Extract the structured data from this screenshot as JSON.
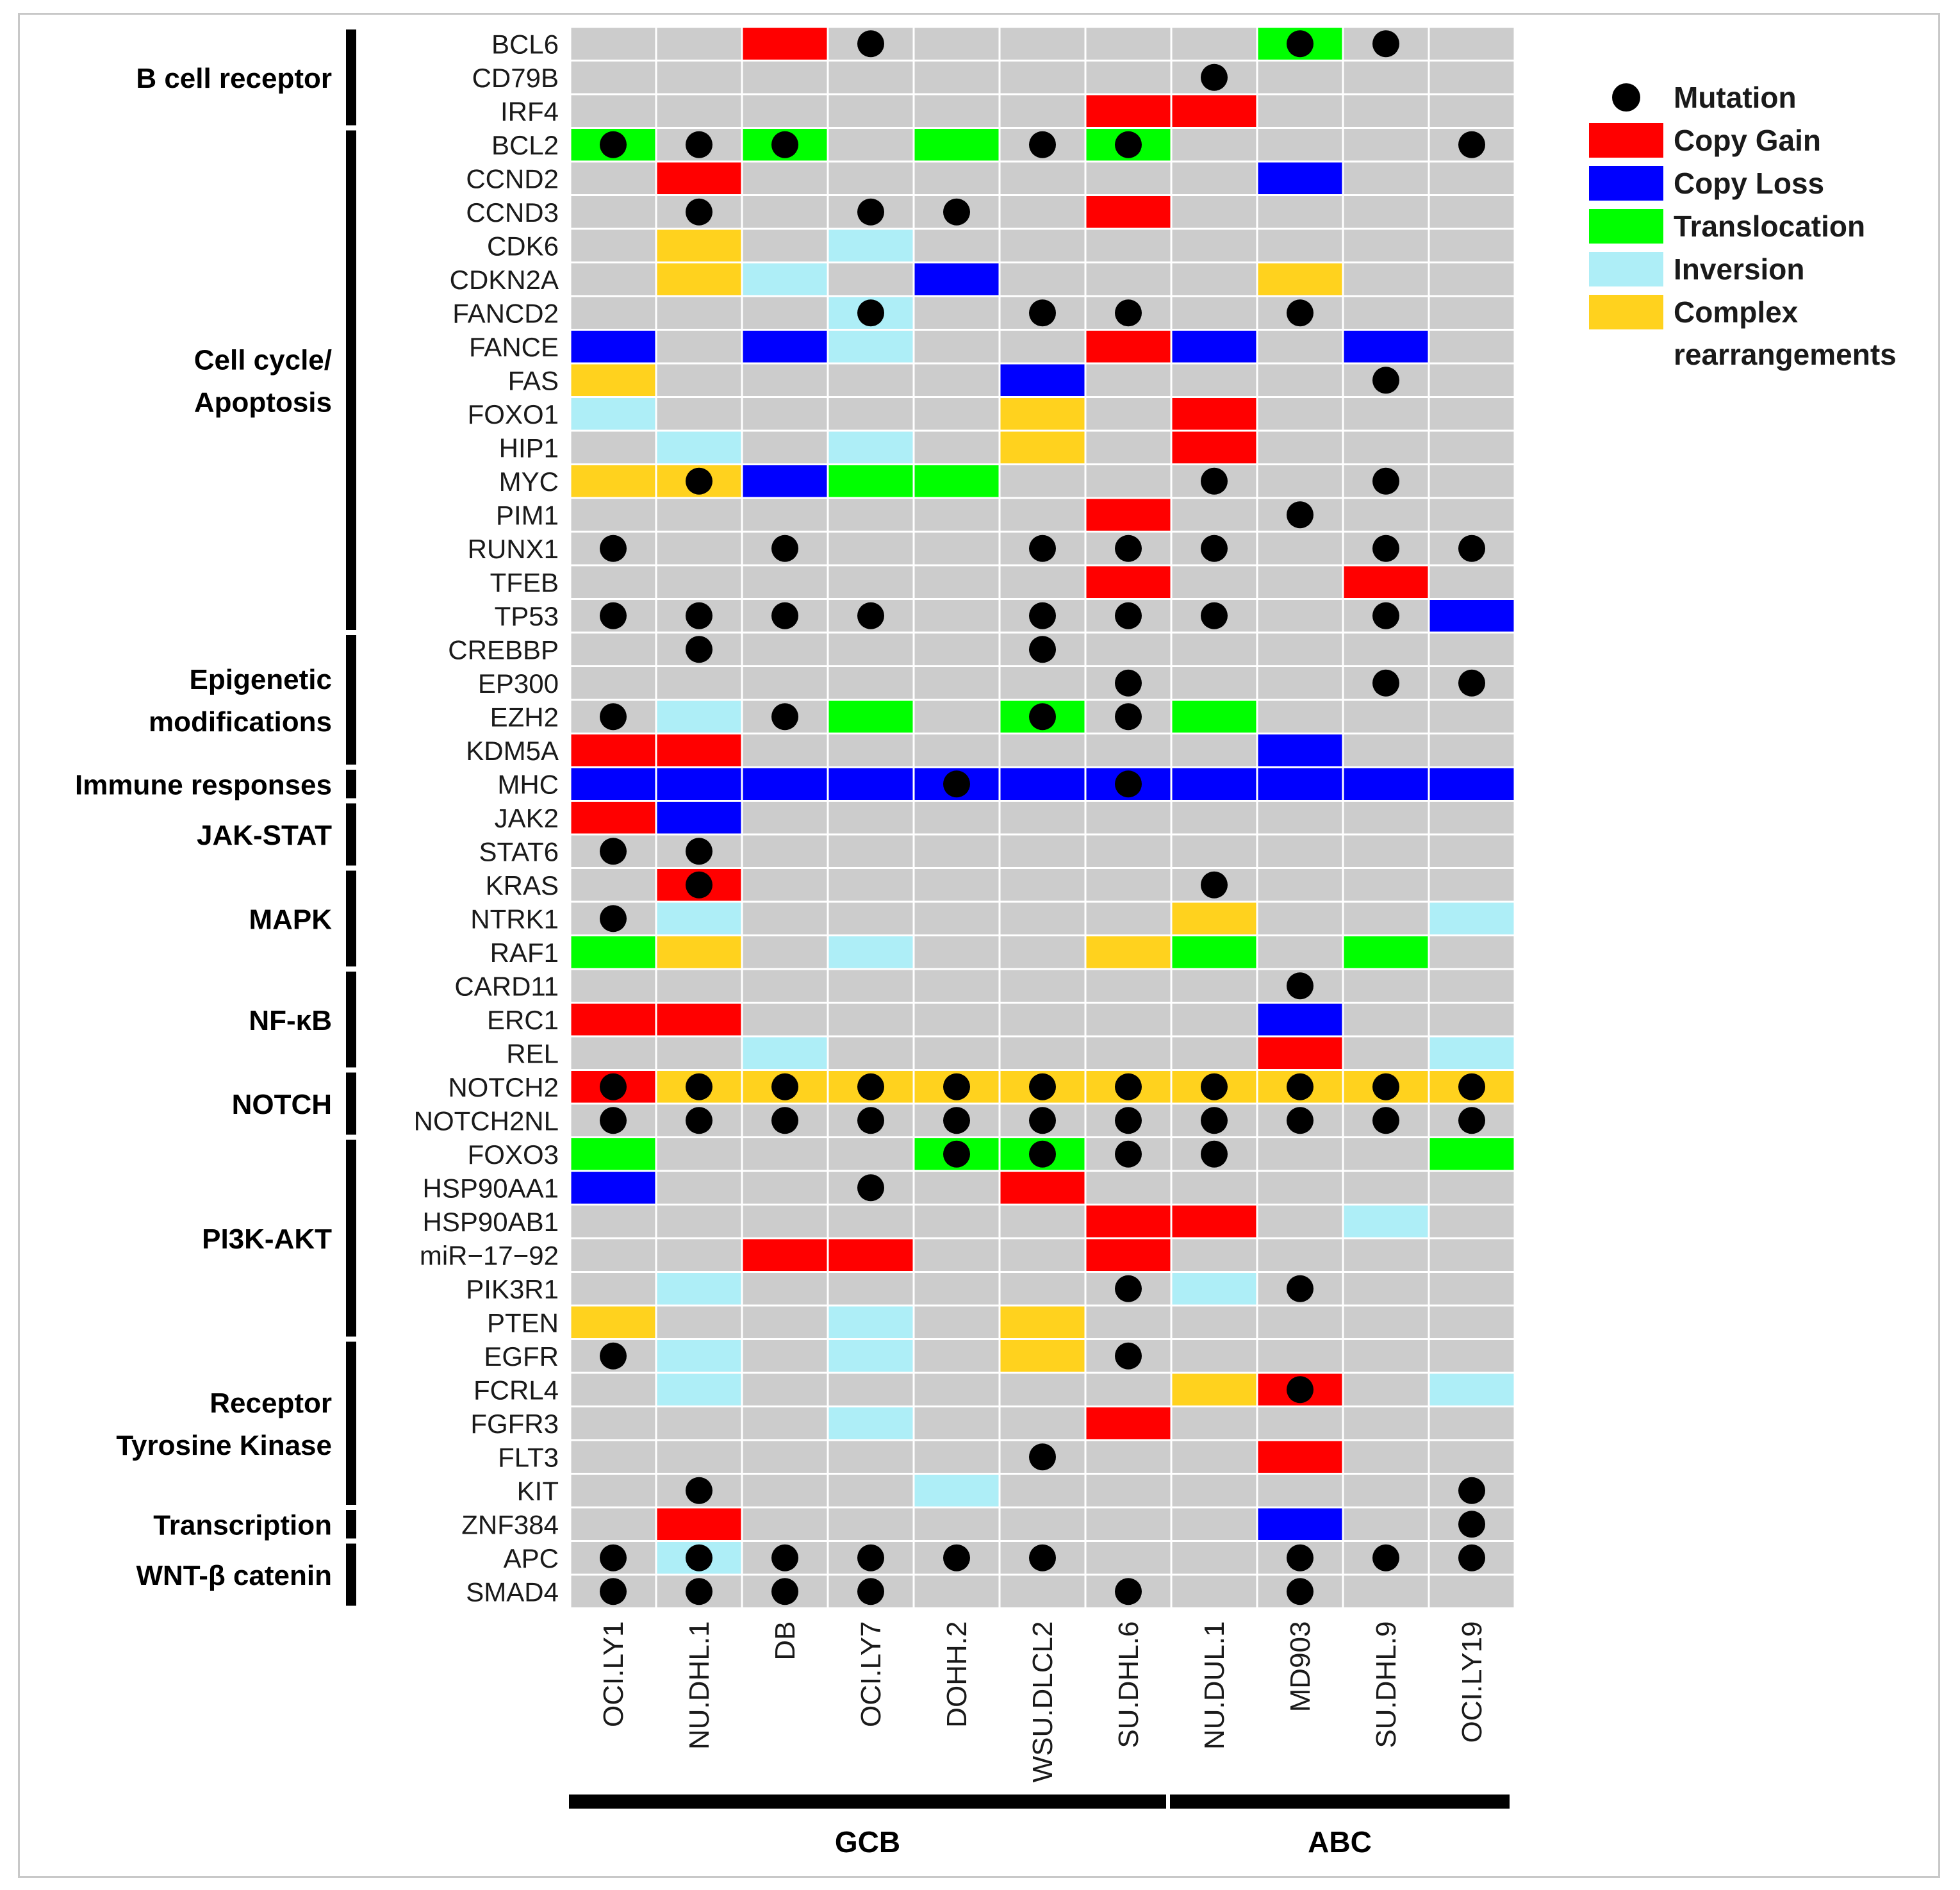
{
  "chart_data": {
    "type": "heatmap",
    "title": "",
    "xlabel": "",
    "ylabel": "",
    "cell_lines": [
      "OCI.LY1",
      "NU.DHL.1",
      "DB",
      "OCI.LY7",
      "DOHH.2",
      "WSU.DLCL2",
      "SU.DHL.6",
      "NU.DUL.1",
      "MD903",
      "SU.DHL.9",
      "OCI.LY19"
    ],
    "genes": [
      "BCL6",
      "CD79B",
      "IRF4",
      "BCL2",
      "CCND2",
      "CCND3",
      "CDK6",
      "CDKN2A",
      "FANCD2",
      "FANCE",
      "FAS",
      "FOXO1",
      "HIP1",
      "MYC",
      "PIM1",
      "RUNX1",
      "TFEB",
      "TP53",
      "CREBBP",
      "EP300",
      "EZH2",
      "KDM5A",
      "MHC",
      "JAK2",
      "STAT6",
      "KRAS",
      "NTRK1",
      "RAF1",
      "CARD11",
      "ERC1",
      "REL",
      "NOTCH2",
      "NOTCH2NL",
      "FOXO3",
      "HSP90AA1",
      "HSP90AB1",
      "miR−17−92",
      "PIK3R1",
      "PTEN",
      "EGFR",
      "FCRL4",
      "FGFR3",
      "FLT3",
      "KIT",
      "ZNF384",
      "APC",
      "SMAD4"
    ],
    "alteration_codes": {
      "0": "none",
      "G": "Copy Gain",
      "L": "Copy Loss",
      "T": "Translocation",
      "I": "Inversion",
      "C": "Complex rearrangements"
    },
    "matrix": [
      [
        "0",
        "0",
        "G",
        "0",
        "0",
        "0",
        "0",
        "0",
        "T",
        "0",
        "0"
      ],
      [
        "0",
        "0",
        "0",
        "0",
        "0",
        "0",
        "0",
        "0",
        "0",
        "0",
        "0"
      ],
      [
        "0",
        "0",
        "0",
        "0",
        "0",
        "0",
        "G",
        "G",
        "0",
        "0",
        "0"
      ],
      [
        "T",
        "0",
        "T",
        "0",
        "T",
        "0",
        "T",
        "0",
        "0",
        "0",
        "0"
      ],
      [
        "0",
        "G",
        "0",
        "0",
        "0",
        "0",
        "0",
        "0",
        "L",
        "0",
        "0"
      ],
      [
        "0",
        "0",
        "0",
        "0",
        "0",
        "0",
        "G",
        "0",
        "0",
        "0",
        "0"
      ],
      [
        "0",
        "C",
        "0",
        "I",
        "0",
        "0",
        "0",
        "0",
        "0",
        "0",
        "0"
      ],
      [
        "0",
        "C",
        "I",
        "0",
        "L",
        "0",
        "0",
        "0",
        "C",
        "0",
        "0"
      ],
      [
        "0",
        "0",
        "0",
        "I",
        "0",
        "0",
        "0",
        "0",
        "0",
        "0",
        "0"
      ],
      [
        "L",
        "0",
        "L",
        "I",
        "0",
        "0",
        "G",
        "L",
        "0",
        "L",
        "0"
      ],
      [
        "C",
        "0",
        "0",
        "0",
        "0",
        "L",
        "0",
        "0",
        "0",
        "0",
        "0"
      ],
      [
        "I",
        "0",
        "0",
        "0",
        "0",
        "C",
        "0",
        "G",
        "0",
        "0",
        "0"
      ],
      [
        "0",
        "I",
        "0",
        "I",
        "0",
        "C",
        "0",
        "G",
        "0",
        "0",
        "0"
      ],
      [
        "C",
        "C",
        "L",
        "T",
        "T",
        "0",
        "0",
        "0",
        "0",
        "0",
        "0"
      ],
      [
        "0",
        "0",
        "0",
        "0",
        "0",
        "0",
        "G",
        "0",
        "0",
        "0",
        "0"
      ],
      [
        "0",
        "0",
        "0",
        "0",
        "0",
        "0",
        "0",
        "0",
        "0",
        "0",
        "0"
      ],
      [
        "0",
        "0",
        "0",
        "0",
        "0",
        "0",
        "G",
        "0",
        "0",
        "G",
        "0"
      ],
      [
        "0",
        "0",
        "0",
        "0",
        "0",
        "0",
        "0",
        "0",
        "0",
        "0",
        "L"
      ],
      [
        "0",
        "0",
        "0",
        "0",
        "0",
        "0",
        "0",
        "0",
        "0",
        "0",
        "0"
      ],
      [
        "0",
        "0",
        "0",
        "0",
        "0",
        "0",
        "0",
        "0",
        "0",
        "0",
        "0"
      ],
      [
        "0",
        "I",
        "0",
        "T",
        "0",
        "T",
        "0",
        "T",
        "0",
        "0",
        "0"
      ],
      [
        "G",
        "G",
        "0",
        "0",
        "0",
        "0",
        "0",
        "0",
        "L",
        "0",
        "0"
      ],
      [
        "L",
        "L",
        "L",
        "L",
        "L",
        "L",
        "L",
        "L",
        "L",
        "L",
        "L"
      ],
      [
        "G",
        "L",
        "0",
        "0",
        "0",
        "0",
        "0",
        "0",
        "0",
        "0",
        "0"
      ],
      [
        "0",
        "0",
        "0",
        "0",
        "0",
        "0",
        "0",
        "0",
        "0",
        "0",
        "0"
      ],
      [
        "0",
        "G",
        "0",
        "0",
        "0",
        "0",
        "0",
        "0",
        "0",
        "0",
        "0"
      ],
      [
        "0",
        "I",
        "0",
        "0",
        "0",
        "0",
        "0",
        "C",
        "0",
        "0",
        "I"
      ],
      [
        "T",
        "C",
        "0",
        "I",
        "0",
        "0",
        "C",
        "T",
        "0",
        "T",
        "0"
      ],
      [
        "0",
        "0",
        "0",
        "0",
        "0",
        "0",
        "0",
        "0",
        "0",
        "0",
        "0"
      ],
      [
        "G",
        "G",
        "0",
        "0",
        "0",
        "0",
        "0",
        "0",
        "L",
        "0",
        "0"
      ],
      [
        "0",
        "0",
        "I",
        "0",
        "0",
        "0",
        "0",
        "0",
        "G",
        "0",
        "I"
      ],
      [
        "G",
        "C",
        "C",
        "C",
        "C",
        "C",
        "C",
        "C",
        "C",
        "C",
        "C"
      ],
      [
        "0",
        "0",
        "0",
        "0",
        "0",
        "0",
        "0",
        "0",
        "0",
        "0",
        "0"
      ],
      [
        "T",
        "0",
        "0",
        "0",
        "T",
        "T",
        "0",
        "0",
        "0",
        "0",
        "T"
      ],
      [
        "L",
        "0",
        "0",
        "0",
        "0",
        "G",
        "0",
        "0",
        "0",
        "0",
        "0"
      ],
      [
        "0",
        "0",
        "0",
        "0",
        "0",
        "0",
        "G",
        "G",
        "0",
        "I",
        "0"
      ],
      [
        "0",
        "0",
        "G",
        "G",
        "0",
        "0",
        "G",
        "0",
        "0",
        "0",
        "0"
      ],
      [
        "0",
        "I",
        "0",
        "0",
        "0",
        "0",
        "0",
        "I",
        "0",
        "0",
        "0"
      ],
      [
        "C",
        "0",
        "0",
        "I",
        "0",
        "C",
        "0",
        "0",
        "0",
        "0",
        "0"
      ],
      [
        "0",
        "I",
        "0",
        "I",
        "0",
        "C",
        "0",
        "0",
        "0",
        "0",
        "0"
      ],
      [
        "0",
        "I",
        "0",
        "0",
        "0",
        "0",
        "0",
        "C",
        "G",
        "0",
        "I"
      ],
      [
        "0",
        "0",
        "0",
        "I",
        "0",
        "0",
        "G",
        "0",
        "0",
        "0",
        "0"
      ],
      [
        "0",
        "0",
        "0",
        "0",
        "0",
        "0",
        "0",
        "0",
        "G",
        "0",
        "0"
      ],
      [
        "0",
        "0",
        "0",
        "0",
        "I",
        "0",
        "0",
        "0",
        "0",
        "0",
        "0"
      ],
      [
        "0",
        "G",
        "0",
        "0",
        "0",
        "0",
        "0",
        "0",
        "L",
        "0",
        "0"
      ],
      [
        "0",
        "I",
        "0",
        "0",
        "0",
        "0",
        "0",
        "0",
        "0",
        "0",
        "0"
      ],
      [
        "0",
        "0",
        "0",
        "0",
        "0",
        "0",
        "0",
        "0",
        "0",
        "0",
        "0"
      ]
    ],
    "mutations": [
      [
        "0",
        "0",
        "0",
        "1",
        "0",
        "0",
        "0",
        "0",
        "1",
        "1",
        "0"
      ],
      [
        "0",
        "0",
        "0",
        "0",
        "0",
        "0",
        "0",
        "1",
        "0",
        "0",
        "0"
      ],
      [
        "0",
        "0",
        "0",
        "0",
        "0",
        "0",
        "0",
        "0",
        "0",
        "0",
        "0"
      ],
      [
        "1",
        "1",
        "1",
        "0",
        "0",
        "1",
        "1",
        "0",
        "0",
        "0",
        "1"
      ],
      [
        "0",
        "0",
        "0",
        "0",
        "0",
        "0",
        "0",
        "0",
        "0",
        "0",
        "0"
      ],
      [
        "0",
        "1",
        "0",
        "1",
        "1",
        "0",
        "0",
        "0",
        "0",
        "0",
        "0"
      ],
      [
        "0",
        "0",
        "0",
        "0",
        "0",
        "0",
        "0",
        "0",
        "0",
        "0",
        "0"
      ],
      [
        "0",
        "0",
        "0",
        "0",
        "0",
        "0",
        "0",
        "0",
        "0",
        "0",
        "0"
      ],
      [
        "0",
        "0",
        "0",
        "1",
        "0",
        "1",
        "1",
        "0",
        "1",
        "0",
        "0"
      ],
      [
        "0",
        "0",
        "0",
        "0",
        "0",
        "0",
        "0",
        "0",
        "0",
        "0",
        "0"
      ],
      [
        "0",
        "0",
        "0",
        "0",
        "0",
        "0",
        "0",
        "0",
        "0",
        "1",
        "0"
      ],
      [
        "0",
        "0",
        "0",
        "0",
        "0",
        "0",
        "0",
        "0",
        "0",
        "0",
        "0"
      ],
      [
        "0",
        "0",
        "0",
        "0",
        "0",
        "0",
        "0",
        "0",
        "0",
        "0",
        "0"
      ],
      [
        "0",
        "1",
        "0",
        "0",
        "0",
        "0",
        "0",
        "1",
        "0",
        "1",
        "0"
      ],
      [
        "0",
        "0",
        "0",
        "0",
        "0",
        "0",
        "0",
        "0",
        "1",
        "0",
        "0"
      ],
      [
        "1",
        "0",
        "1",
        "0",
        "0",
        "1",
        "1",
        "1",
        "0",
        "1",
        "1"
      ],
      [
        "0",
        "0",
        "0",
        "0",
        "0",
        "0",
        "0",
        "0",
        "0",
        "0",
        "0"
      ],
      [
        "1",
        "1",
        "1",
        "1",
        "0",
        "1",
        "1",
        "1",
        "0",
        "1",
        "0"
      ],
      [
        "0",
        "1",
        "0",
        "0",
        "0",
        "1",
        "0",
        "0",
        "0",
        "0",
        "0"
      ],
      [
        "0",
        "0",
        "0",
        "0",
        "0",
        "0",
        "1",
        "0",
        "0",
        "1",
        "1"
      ],
      [
        "1",
        "0",
        "1",
        "0",
        "0",
        "1",
        "1",
        "0",
        "0",
        "0",
        "0"
      ],
      [
        "0",
        "0",
        "0",
        "0",
        "0",
        "0",
        "0",
        "0",
        "0",
        "0",
        "0"
      ],
      [
        "0",
        "0",
        "0",
        "0",
        "1",
        "0",
        "1",
        "0",
        "0",
        "0",
        "0"
      ],
      [
        "0",
        "0",
        "0",
        "0",
        "0",
        "0",
        "0",
        "0",
        "0",
        "0",
        "0"
      ],
      [
        "1",
        "1",
        "0",
        "0",
        "0",
        "0",
        "0",
        "0",
        "0",
        "0",
        "0"
      ],
      [
        "0",
        "1",
        "0",
        "0",
        "0",
        "0",
        "0",
        "1",
        "0",
        "0",
        "0"
      ],
      [
        "1",
        "0",
        "0",
        "0",
        "0",
        "0",
        "0",
        "0",
        "0",
        "0",
        "0"
      ],
      [
        "0",
        "0",
        "0",
        "0",
        "0",
        "0",
        "0",
        "0",
        "0",
        "0",
        "0"
      ],
      [
        "0",
        "0",
        "0",
        "0",
        "0",
        "0",
        "0",
        "0",
        "1",
        "0",
        "0"
      ],
      [
        "0",
        "0",
        "0",
        "0",
        "0",
        "0",
        "0",
        "0",
        "0",
        "0",
        "0"
      ],
      [
        "0",
        "0",
        "0",
        "0",
        "0",
        "0",
        "0",
        "0",
        "0",
        "0",
        "0"
      ],
      [
        "1",
        "1",
        "1",
        "1",
        "1",
        "1",
        "1",
        "1",
        "1",
        "1",
        "1"
      ],
      [
        "1",
        "1",
        "1",
        "1",
        "1",
        "1",
        "1",
        "1",
        "1",
        "1",
        "1"
      ],
      [
        "0",
        "0",
        "0",
        "0",
        "1",
        "1",
        "1",
        "1",
        "0",
        "0",
        "0"
      ],
      [
        "0",
        "0",
        "0",
        "1",
        "0",
        "0",
        "0",
        "0",
        "0",
        "0",
        "0"
      ],
      [
        "0",
        "0",
        "0",
        "0",
        "0",
        "0",
        "0",
        "0",
        "0",
        "0",
        "0"
      ],
      [
        "0",
        "0",
        "0",
        "0",
        "0",
        "0",
        "0",
        "0",
        "0",
        "0",
        "0"
      ],
      [
        "0",
        "0",
        "0",
        "0",
        "0",
        "0",
        "1",
        "0",
        "1",
        "0",
        "0"
      ],
      [
        "0",
        "0",
        "0",
        "0",
        "0",
        "0",
        "0",
        "0",
        "0",
        "0",
        "0"
      ],
      [
        "1",
        "0",
        "0",
        "0",
        "0",
        "0",
        "1",
        "0",
        "0",
        "0",
        "0"
      ],
      [
        "0",
        "0",
        "0",
        "0",
        "0",
        "0",
        "0",
        "0",
        "1",
        "0",
        "0"
      ],
      [
        "0",
        "0",
        "0",
        "0",
        "0",
        "0",
        "0",
        "0",
        "0",
        "0",
        "0"
      ],
      [
        "0",
        "0",
        "0",
        "0",
        "0",
        "1",
        "0",
        "0",
        "0",
        "0",
        "0"
      ],
      [
        "0",
        "1",
        "0",
        "0",
        "0",
        "0",
        "0",
        "0",
        "0",
        "0",
        "1"
      ],
      [
        "0",
        "0",
        "0",
        "0",
        "0",
        "0",
        "0",
        "0",
        "0",
        "0",
        "1"
      ],
      [
        "1",
        "1",
        "1",
        "1",
        "1",
        "1",
        "0",
        "0",
        "1",
        "1",
        "1"
      ],
      [
        "1",
        "1",
        "1",
        "1",
        "0",
        "0",
        "1",
        "0",
        "1",
        "0",
        "0"
      ]
    ],
    "pathways": [
      {
        "label_lines": [
          "B cell receptor"
        ],
        "first_gene": 0,
        "last_gene": 2
      },
      {
        "label_lines": [
          "Cell cycle/",
          "Apoptosis"
        ],
        "first_gene": 3,
        "last_gene": 17
      },
      {
        "label_lines": [
          "Epigenetic",
          "modifications"
        ],
        "first_gene": 18,
        "last_gene": 21
      },
      {
        "label_lines": [
          "Immune responses"
        ],
        "first_gene": 22,
        "last_gene": 22
      },
      {
        "label_lines": [
          "JAK-STAT"
        ],
        "first_gene": 23,
        "last_gene": 24
      },
      {
        "label_lines": [
          "MAPK"
        ],
        "first_gene": 25,
        "last_gene": 27
      },
      {
        "label_lines": [
          "NF-κB"
        ],
        "first_gene": 28,
        "last_gene": 30
      },
      {
        "label_lines": [
          "NOTCH"
        ],
        "first_gene": 31,
        "last_gene": 32
      },
      {
        "label_lines": [
          "PI3K-AKT"
        ],
        "first_gene": 33,
        "last_gene": 38
      },
      {
        "label_lines": [
          "Receptor",
          "Tyrosine Kinase"
        ],
        "first_gene": 39,
        "last_gene": 43
      },
      {
        "label_lines": [
          "Transcription"
        ],
        "first_gene": 44,
        "last_gene": 44
      },
      {
        "label_lines": [
          "WNT-β catenin"
        ],
        "first_gene": 45,
        "last_gene": 46
      }
    ],
    "groups": [
      {
        "label": "GCB",
        "first_col": 0,
        "last_col": 6
      },
      {
        "label": "ABC",
        "first_col": 7,
        "last_col": 10
      }
    ],
    "legend": [
      {
        "label_lines": [
          "Mutation"
        ],
        "kind": "dot",
        "color": "#000000"
      },
      {
        "label_lines": [
          "Copy Gain"
        ],
        "kind": "box",
        "color": "#ff0000"
      },
      {
        "label_lines": [
          "Copy Loss"
        ],
        "kind": "box",
        "color": "#0000ff"
      },
      {
        "label_lines": [
          "Translocation"
        ],
        "kind": "box",
        "color": "#00ff00"
      },
      {
        "label_lines": [
          "Inversion"
        ],
        "kind": "box",
        "color": "#aeeef7"
      },
      {
        "label_lines": [
          "Complex",
          "rearrangements"
        ],
        "kind": "box",
        "color": "#ffd21e"
      }
    ],
    "colors": {
      "G": "#ff0000",
      "L": "#0000ff",
      "T": "#00ff00",
      "I": "#aeeef7",
      "C": "#ffd21e",
      "background": "#cccccc",
      "grid": "#f2f2f2",
      "dot": "#000000"
    },
    "legend_position": "top-right"
  }
}
